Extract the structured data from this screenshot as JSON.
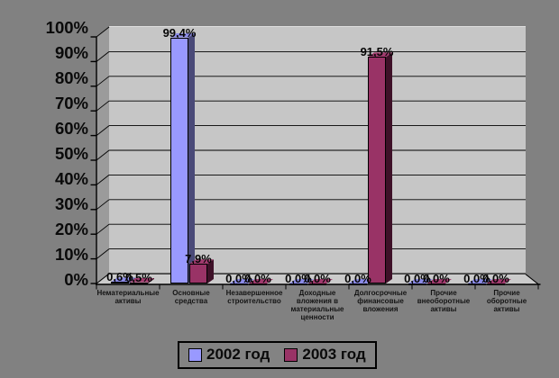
{
  "chart": {
    "colors": {
      "canvas_bg": "#818181",
      "plot_bg": "#C6C6C6",
      "wall": "#9B9B9B",
      "floor": "#CBCBCB",
      "gridline": "#000000"
    },
    "y_axis": {
      "tick_labels": [
        "100%",
        "90%",
        "80%",
        "70%",
        "60%",
        "50%",
        "40%",
        "30%",
        "20%",
        "10%",
        "0%"
      ]
    },
    "legend": {
      "position": "bottom",
      "items": [
        {
          "label": "2002 год",
          "color": "#9999FF"
        },
        {
          "label": "2003 год",
          "color": "#993366"
        }
      ]
    }
  },
  "chart_data": {
    "type": "bar",
    "title": "",
    "xlabel": "",
    "ylabel": "",
    "ylim": [
      0,
      100
    ],
    "y_tick_step": 10,
    "grid": true,
    "legend_position": "bottom",
    "categories": [
      "Нематериальные активы",
      "Основные средства",
      "Незавершенное строительство",
      "Доходные вложения в материальные ценности",
      "Долгосрочные финансовые вложения",
      "Прочие внеоборотные активы",
      "Прочие оборотные активы"
    ],
    "series": [
      {
        "name": "2002 год",
        "color": "#9999FF",
        "color_side": "#4A4A78",
        "color_top": "#8B8BE8",
        "values": [
          0.6,
          99.4,
          0.0,
          0.0,
          0.0,
          0.0,
          0.0
        ],
        "data_labels": [
          "0,6%",
          "99,4%",
          "0,0%",
          "0,0%",
          "0,0%",
          "0,0%",
          "0,0%"
        ]
      },
      {
        "name": "2003 год",
        "color": "#993366",
        "color_side": "#3E1128",
        "color_top": "#A23A6E",
        "values": [
          0.5,
          7.9,
          0.0,
          0.0,
          91.5,
          0.0,
          0.0
        ],
        "data_labels": [
          "0,5%",
          "7,9%",
          "0,0%",
          "0,0%",
          "91,5%",
          "0,0%",
          "0,0%"
        ]
      }
    ]
  }
}
